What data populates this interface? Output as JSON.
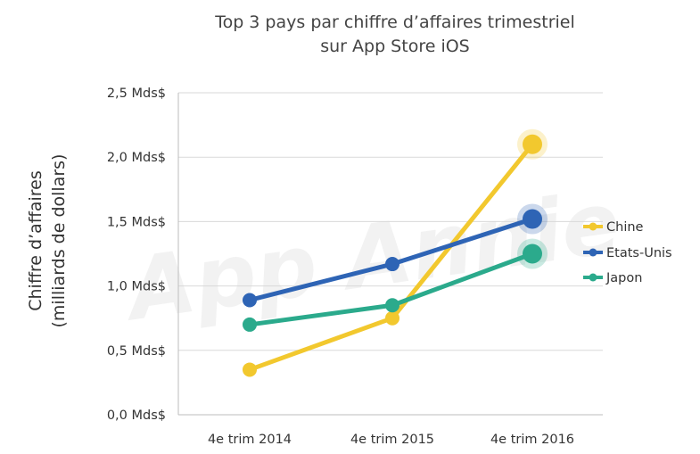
{
  "chart_data": {
    "type": "line",
    "title": "Top 3 pays par chiffre d’affaires trimestriel",
    "subtitle": "sur App Store iOS",
    "xlabel": "",
    "ylabel": "Chiffre d’affaires",
    "ylabel_sub": "(milliards de dollars)",
    "categories": [
      "4e trim 2014",
      "4e trim 2015",
      "4e trim 2016"
    ],
    "y_ticks": [
      "0,0 Mds$",
      "0,5 Mds$",
      "1,0 Mds$",
      "1,5 Mds$",
      "2,0 Mds$",
      "2,5 Mds$"
    ],
    "ylim": [
      0,
      2.5
    ],
    "grid": true,
    "legend_position": "right",
    "watermark": "App Annie",
    "series": [
      {
        "name": "Chine",
        "values": [
          0.35,
          0.75,
          2.1
        ],
        "color": "#F2C82E"
      },
      {
        "name": "Etats-Unis",
        "values": [
          0.89,
          1.17,
          1.52
        ],
        "color": "#2E64B5"
      },
      {
        "name": "Japon",
        "values": [
          0.7,
          0.85,
          1.25
        ],
        "color": "#2BAA8C"
      }
    ]
  }
}
